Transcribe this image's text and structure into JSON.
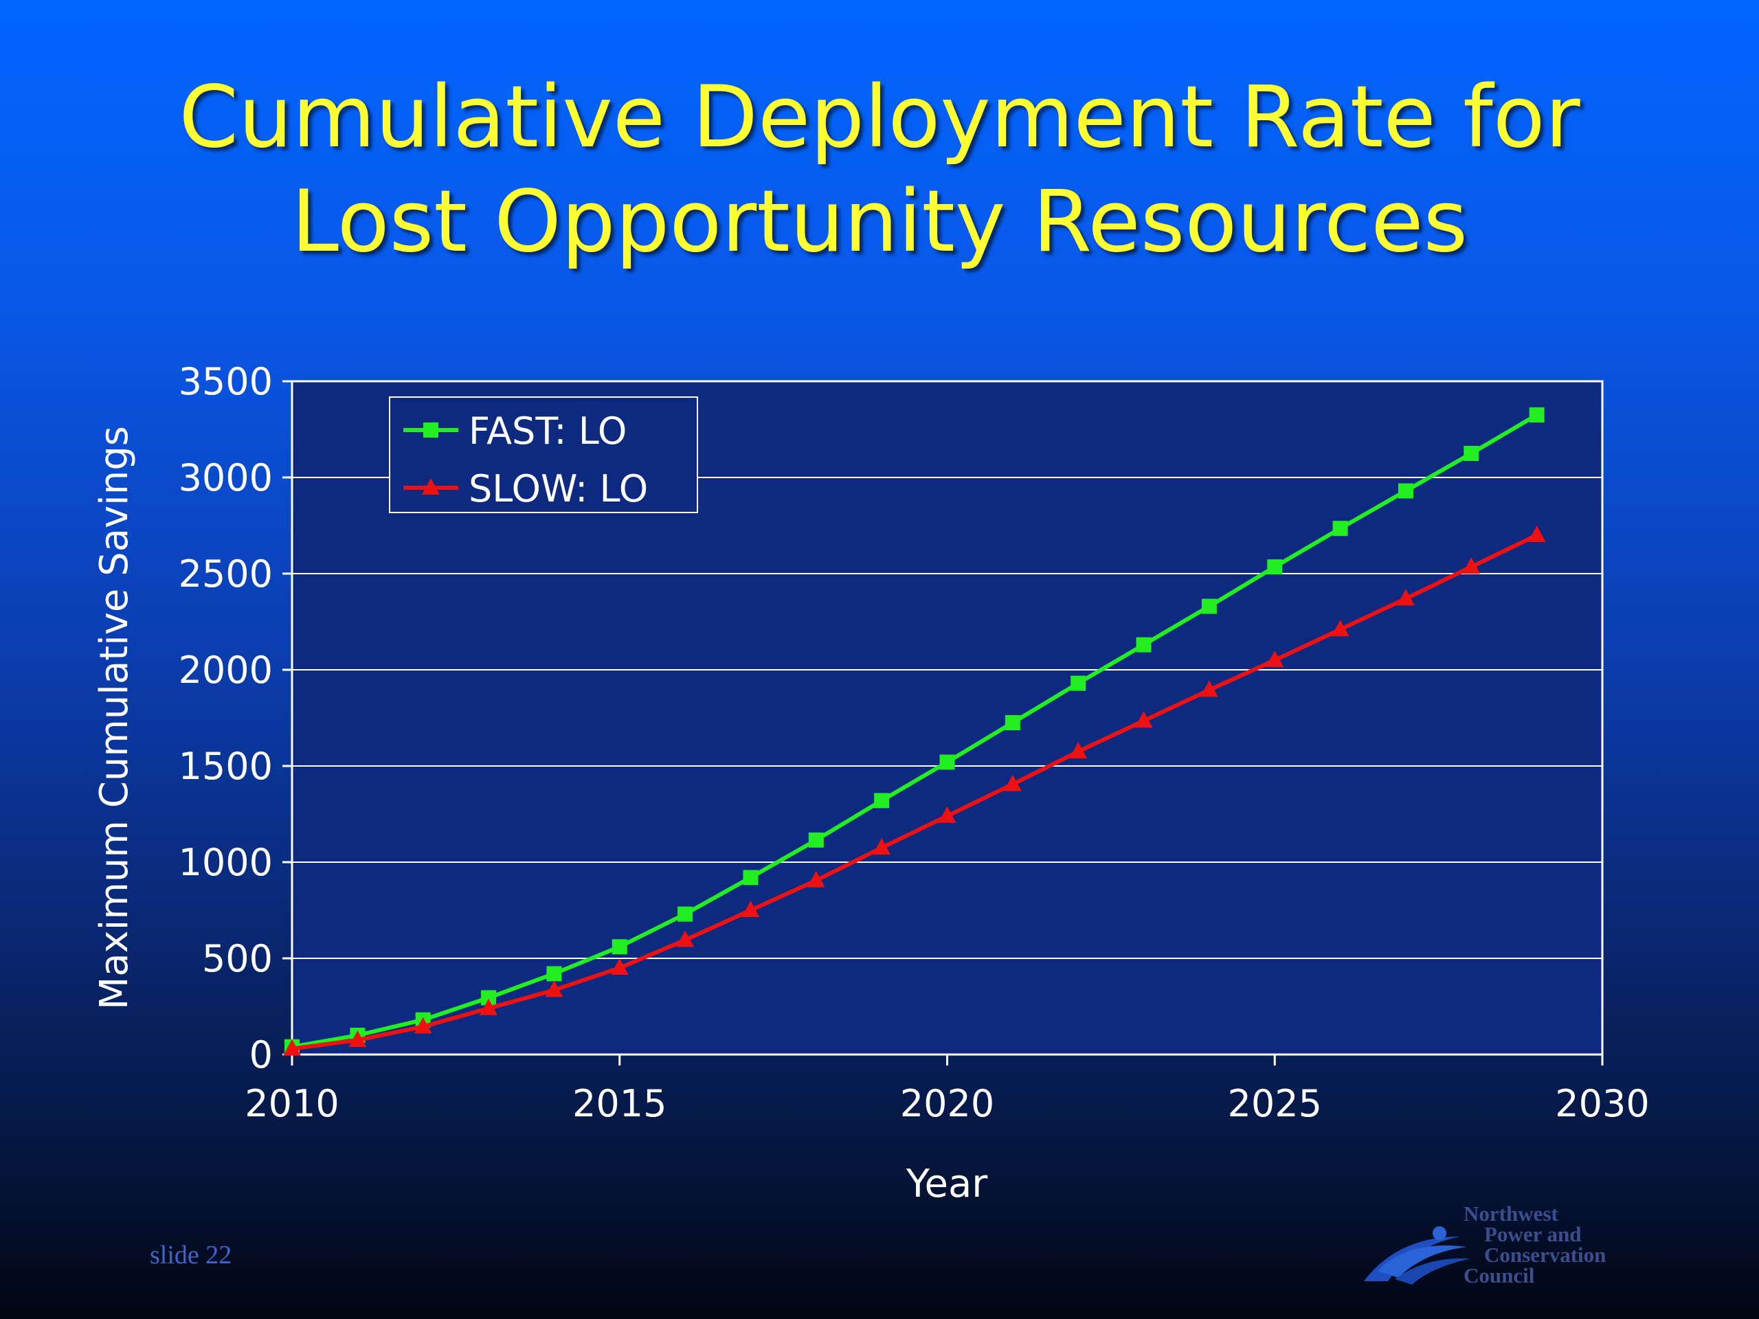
{
  "title": {
    "line1": "Cumulative Deployment Rate for",
    "line2": "Lost Opportunity Resources"
  },
  "footer": {
    "slide_label": "slide 22",
    "logo_lines": [
      "Northwest",
      "Power and",
      "Conservation",
      "Council"
    ]
  },
  "colors": {
    "title": "#ffff33",
    "plot_background": "#0d2a80",
    "fast": "#22ee22",
    "slow": "#ee1111",
    "text": "#ffffff"
  },
  "chart_data": {
    "type": "line",
    "xlabel": "Year",
    "ylabel": "Maximum Cumulative Savings",
    "xlim": [
      2010,
      2030
    ],
    "ylim": [
      0,
      3500
    ],
    "xticks": [
      2010,
      2015,
      2020,
      2025,
      2030
    ],
    "yticks": [
      0,
      500,
      1000,
      1500,
      2000,
      2500,
      3000,
      3500
    ],
    "grid": "horizontal",
    "legend_position": "top-left",
    "x": [
      2010,
      2011,
      2012,
      2013,
      2014,
      2015,
      2016,
      2017,
      2018,
      2019,
      2020,
      2021,
      2022,
      2023,
      2024,
      2025,
      2026,
      2027,
      2028,
      2029
    ],
    "series": [
      {
        "name": "FAST: LO",
        "marker": "square",
        "values": [
          40,
          100,
          180,
          295,
          420,
          560,
          730,
          920,
          1115,
          1320,
          1520,
          1725,
          1930,
          2130,
          2330,
          2535,
          2735,
          2930,
          3125,
          3325
        ]
      },
      {
        "name": "SLOW: LO",
        "marker": "triangle",
        "values": [
          30,
          75,
          145,
          240,
          335,
          450,
          595,
          750,
          905,
          1075,
          1240,
          1405,
          1575,
          1735,
          1895,
          2050,
          2210,
          2370,
          2535,
          2700
        ]
      }
    ]
  }
}
